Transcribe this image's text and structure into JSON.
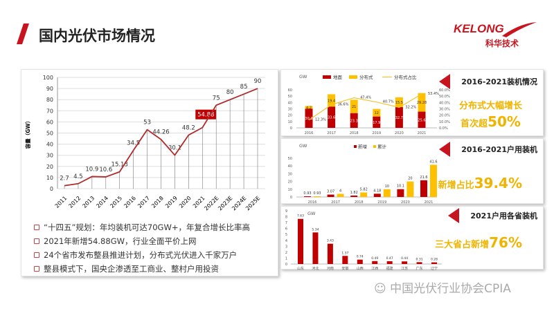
{
  "header": {
    "title": "国内光伏市场情况",
    "logo_en": "KELONG",
    "logo_cn": "科华技术"
  },
  "bullets": [
    "“十四五”规划：年均装机可达70GW+，年复合增长比率高",
    "2021年新增54.88GW，行业全面平价上网",
    "24个省市发布整县推进计划，分布式光伏进入千家万户",
    "整县模式下，国央企渗透至工商业、整村户用投资"
  ],
  "callouts": [
    {
      "title": "2016-2021装机情况",
      "highlight_pre": "分布式大幅增长",
      "highlight_line2": "首次超",
      "highlight_num": "50%"
    },
    {
      "title": "2016-2021户用装机",
      "highlight_pre": "新增占比",
      "highlight_num": "39.4%"
    },
    {
      "title": "2021户用各省装机",
      "highlight_pre": "三大省占新增",
      "highlight_num": "76%"
    }
  ],
  "footer": "中国光伏行业协会CPIA",
  "colors": {
    "red": "#c00000",
    "yellow": "#ffc000",
    "line": "#b22a2a"
  },
  "chart_data": [
    {
      "type": "line",
      "ylabel": "容量（GW）",
      "ylim": [
        0,
        100
      ],
      "yticks": [
        0,
        10,
        20,
        30,
        40,
        50,
        60,
        70,
        80,
        90,
        100
      ],
      "grid": true,
      "categories": [
        "2011",
        "2012",
        "2013",
        "2014",
        "2015",
        "2016",
        "2017",
        "2018",
        "2019",
        "2020",
        "2021",
        "2022E",
        "2023E",
        "2024E",
        "2025E"
      ],
      "values": [
        2.7,
        4.5,
        10.9,
        10.6,
        15.13,
        34.5,
        53,
        44.26,
        30.1,
        48.2,
        54.88,
        75,
        80,
        85,
        90
      ],
      "labels": [
        "2.7",
        "4.5",
        "10.9",
        "10.6",
        "15.13",
        "34.5",
        "53",
        "44.26",
        "30.1",
        "48.2",
        "54.88",
        "75",
        "80",
        "85",
        "90"
      ],
      "highlight_index": 10
    },
    {
      "type": "bar",
      "unit": "GW",
      "ylim": [
        0,
        60
      ],
      "yticks": [
        0,
        10,
        20,
        30,
        40,
        50,
        60
      ],
      "y2ticks": [
        "0.0%",
        "10.0%",
        "20.0%",
        "30.0%",
        "40.0%",
        "50.0%",
        "60.0%"
      ],
      "y2lim": [
        0,
        60
      ],
      "categories": [
        "2016",
        "2017",
        "2018",
        "2019",
        "2020",
        "2021"
      ],
      "series": [
        {
          "name": "地面",
          "values": [
            30.3,
            33.6,
            23.3,
            17.9,
            32.7,
            25.6
          ],
          "labels": [
            "30.3",
            "33.6",
            "23.3",
            "17.9",
            "32.7",
            "25.6"
          ]
        },
        {
          "name": "分布式",
          "values": [
            4.2,
            19.4,
            21,
            12,
            15.5,
            29.28
          ],
          "labels": [
            "4.2",
            "19.4",
            "21",
            "12",
            "15.5",
            "29.28"
          ]
        },
        {
          "name": "分布式占比",
          "values": [
            12.3,
            36.6,
            47.4,
            40.7,
            32.2,
            53.4
          ],
          "labels": [
            "12.3%",
            "36.6%",
            "47.4%",
            "40.7%",
            "32.2%",
            "53.4%"
          ]
        }
      ],
      "legend": "top"
    },
    {
      "type": "bar",
      "unit": "GW",
      "ylim": [
        0,
        50
      ],
      "yticks": [
        0,
        10,
        20,
        30,
        40,
        50
      ],
      "categories": [
        "2016",
        "2017",
        "2018",
        "2019",
        "2020",
        "2021"
      ],
      "series": [
        {
          "name": "新增",
          "values": [
            0.93,
            3.07,
            1.82,
            4.18,
            10.1,
            21.6
          ],
          "labels": [
            "0.93",
            "3.07",
            "1.82",
            "4.18",
            "10.1",
            "21.6"
          ]
        },
        {
          "name": "累计",
          "values": [
            0.93,
            4,
            5.82,
            10,
            20,
            41.6
          ],
          "labels": [
            "0.93",
            "4",
            "5.82",
            "10",
            "20",
            "41.6"
          ]
        }
      ],
      "legend": "top"
    },
    {
      "type": "bar",
      "unit": "GW",
      "ylim": [
        0,
        9
      ],
      "yticks": [
        0,
        1,
        2,
        3,
        4,
        5,
        6,
        7,
        8,
        9
      ],
      "categories": [
        "山东",
        "河北",
        "河南",
        "安徽",
        "山西",
        "江西",
        "福建",
        "江苏",
        "广东",
        "辽宁"
      ],
      "values": [
        7.63,
        5.34,
        3.43,
        1.37,
        0.74,
        0.49,
        0.47,
        0.44,
        0.31,
        0.28
      ],
      "labels": [
        "7.63",
        "5.34",
        "3.43",
        "1.37",
        "0.74",
        "0.49",
        "0.47",
        "0.44",
        "0.31",
        "0.28"
      ]
    }
  ]
}
